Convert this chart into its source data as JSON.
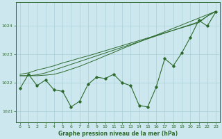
{
  "xlabel": "Graphe pression niveau de la mer (hPa)",
  "hours": [
    0,
    1,
    2,
    3,
    4,
    5,
    6,
    7,
    8,
    9,
    10,
    11,
    12,
    13,
    14,
    15,
    16,
    17,
    18,
    19,
    20,
    21,
    22,
    23
  ],
  "line_wavy": [
    1021.8,
    1022.3,
    1021.9,
    1022.1,
    1021.75,
    1021.7,
    1021.15,
    1021.35,
    1021.95,
    1022.2,
    1022.15,
    1022.3,
    1022.0,
    1021.9,
    1021.2,
    1021.15,
    1021.85,
    1022.85,
    1022.6,
    1023.05,
    1023.6,
    1024.2,
    1024.0,
    1024.5
  ],
  "line_s1": [
    1022.25,
    1022.25,
    1022.25,
    1022.27,
    1022.3,
    1022.38,
    1022.48,
    1022.58,
    1022.7,
    1022.82,
    1022.95,
    1023.07,
    1023.2,
    1023.32,
    1023.44,
    1023.56,
    1023.68,
    1023.8,
    1023.92,
    1024.04,
    1024.16,
    1024.28,
    1024.4,
    1024.52
  ],
  "line_s2": [
    1022.25,
    1022.25,
    1022.28,
    1022.35,
    1022.45,
    1022.55,
    1022.65,
    1022.75,
    1022.85,
    1022.95,
    1023.05,
    1023.15,
    1023.25,
    1023.35,
    1023.45,
    1023.55,
    1023.65,
    1023.75,
    1023.85,
    1023.95,
    1024.05,
    1024.15,
    1024.35,
    1024.52
  ],
  "line_s3": [
    1022.3,
    1022.35,
    1022.45,
    1022.52,
    1022.6,
    1022.7,
    1022.78,
    1022.87,
    1022.95,
    1023.04,
    1023.13,
    1023.22,
    1023.31,
    1023.4,
    1023.49,
    1023.58,
    1023.67,
    1023.76,
    1023.85,
    1023.94,
    1024.03,
    1024.12,
    1024.35,
    1024.52
  ],
  "line_color": "#2d6a2d",
  "bg_color": "#cce8ee",
  "grid_color": "#aacfd8",
  "ylim": [
    1020.6,
    1024.85
  ],
  "yticks": [
    1021,
    1022,
    1023,
    1024
  ],
  "xticks": [
    0,
    1,
    2,
    3,
    4,
    5,
    6,
    7,
    8,
    9,
    10,
    11,
    12,
    13,
    14,
    15,
    16,
    17,
    18,
    19,
    20,
    21,
    22,
    23
  ]
}
